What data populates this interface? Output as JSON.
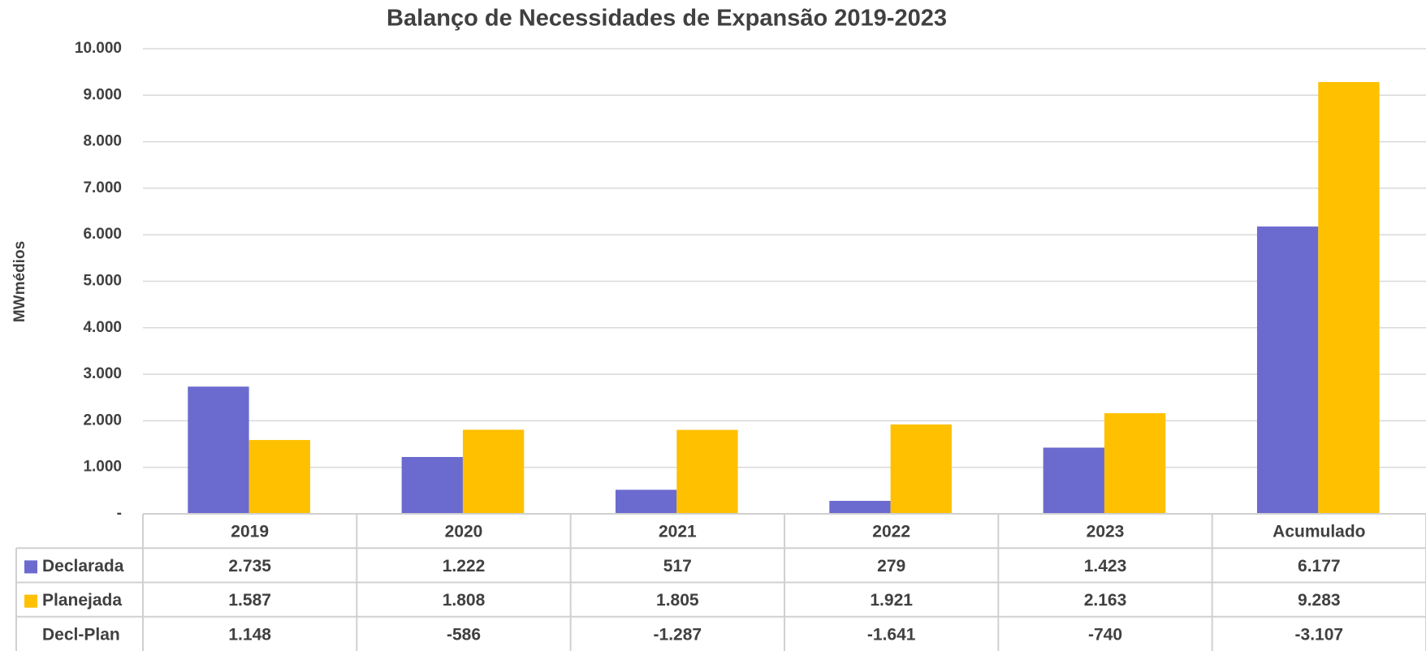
{
  "chart_data": {
    "type": "bar",
    "title": "Balanço de Necessidades de Expansão 2019-2023",
    "y_axis_label": "MWmédios",
    "categories": [
      "2019",
      "2020",
      "2021",
      "2022",
      "2023",
      "Acumulado"
    ],
    "series": [
      {
        "name": "Declarada",
        "color": "#6b6bcf",
        "values": [
          2735,
          1222,
          517,
          279,
          1423,
          6177
        ],
        "value_labels": [
          "2.735",
          "1.222",
          "517",
          "279",
          "1.423",
          "6.177"
        ]
      },
      {
        "name": "Planejada",
        "color": "#ffc000",
        "values": [
          1587,
          1808,
          1805,
          1921,
          2163,
          9283
        ],
        "value_labels": [
          "1.587",
          "1.808",
          "1.805",
          "1.921",
          "2.163",
          "9.283"
        ]
      }
    ],
    "difference_row": {
      "name": "Decl-Plan",
      "labels": [
        "1.148",
        "-586",
        "-1.287",
        "-1.641",
        "-740",
        "-3.107"
      ]
    },
    "ylim": [
      0,
      10000
    ],
    "yticks": [
      {
        "value": 0,
        "label": "-"
      },
      {
        "value": 1000,
        "label": "1.000"
      },
      {
        "value": 2000,
        "label": "2.000"
      },
      {
        "value": 3000,
        "label": "3.000"
      },
      {
        "value": 4000,
        "label": "4.000"
      },
      {
        "value": 5000,
        "label": "5.000"
      },
      {
        "value": 6000,
        "label": "6.000"
      },
      {
        "value": 7000,
        "label": "7.000"
      },
      {
        "value": 8000,
        "label": "8.000"
      },
      {
        "value": 9000,
        "label": "9.000"
      },
      {
        "value": 10000,
        "label": "10.000"
      }
    ],
    "grid": true
  }
}
